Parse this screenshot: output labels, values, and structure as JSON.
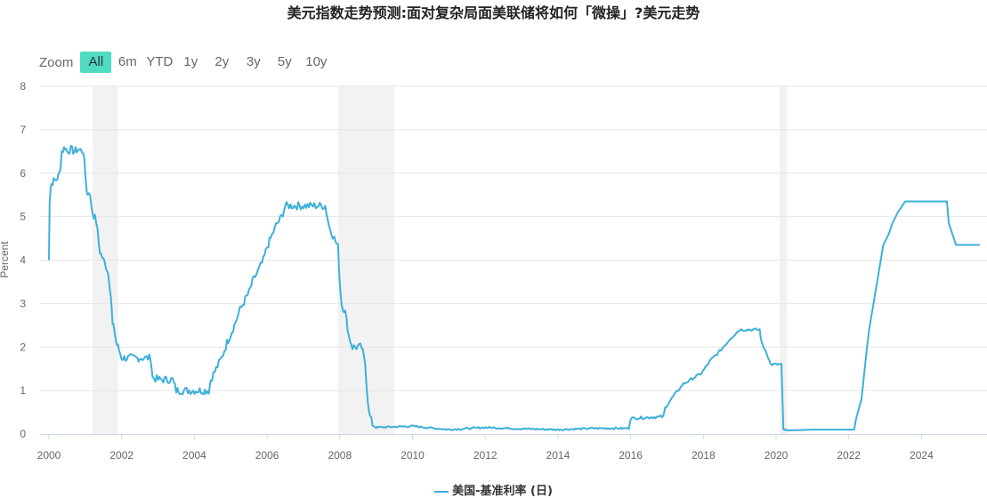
{
  "title": "美元指数走势预测:面对复杂局面美联储将如何「微操」?美元走势",
  "zoom": {
    "label": "Zoom",
    "buttons": [
      "All",
      "6m",
      "YTD",
      "1y",
      "2y",
      "3y",
      "5y",
      "10y"
    ],
    "active": "All"
  },
  "legend": {
    "label": "美国-基准利率 (日)"
  },
  "colors": {
    "line": "#3db0da",
    "recession": "#f2f2f2",
    "grid": "#e6e6e6",
    "active_button": "#4fdcc1"
  },
  "chart_data": {
    "type": "line",
    "ylabel": "Percent",
    "ylim": [
      0,
      8
    ],
    "xlim": [
      1999.85,
      2025.7
    ],
    "yticks": [
      "0",
      "1",
      "2",
      "3",
      "4",
      "5",
      "6",
      "7",
      "8"
    ],
    "xticks": [
      "2000",
      "2002",
      "2004",
      "2006",
      "2008",
      "2010",
      "2012",
      "2014",
      "2016",
      "2018",
      "2020",
      "2022",
      "2024"
    ],
    "recession_bands": [
      [
        2001.2,
        2001.9
      ],
      [
        2007.95,
        2009.5
      ],
      [
        2020.1,
        2020.3
      ]
    ],
    "series": [
      {
        "name": "美国-基准利率 (日)",
        "points": [
          [
            2000.0,
            4.0
          ],
          [
            2000.02,
            5.4
          ],
          [
            2000.05,
            5.7
          ],
          [
            2000.1,
            5.8
          ],
          [
            2000.2,
            5.85
          ],
          [
            2000.3,
            6.0
          ],
          [
            2000.35,
            6.5
          ],
          [
            2000.45,
            6.6
          ],
          [
            2000.5,
            6.5
          ],
          [
            2000.6,
            6.55
          ],
          [
            2000.7,
            6.5
          ],
          [
            2000.8,
            6.55
          ],
          [
            2000.95,
            6.5
          ],
          [
            2001.0,
            6.0
          ],
          [
            2001.05,
            5.5
          ],
          [
            2001.1,
            5.6
          ],
          [
            2001.2,
            5.1
          ],
          [
            2001.3,
            4.9
          ],
          [
            2001.4,
            4.2
          ],
          [
            2001.5,
            4.0
          ],
          [
            2001.6,
            3.8
          ],
          [
            2001.65,
            3.6
          ],
          [
            2001.7,
            3.2
          ],
          [
            2001.75,
            2.5
          ],
          [
            2001.8,
            2.4
          ],
          [
            2001.85,
            2.1
          ],
          [
            2001.9,
            2.0
          ],
          [
            2002.0,
            1.75
          ],
          [
            2002.5,
            1.75
          ],
          [
            2002.8,
            1.75
          ],
          [
            2002.85,
            1.3
          ],
          [
            2003.0,
            1.25
          ],
          [
            2003.4,
            1.25
          ],
          [
            2003.5,
            1.0
          ],
          [
            2004.4,
            1.0
          ],
          [
            2004.45,
            1.25
          ],
          [
            2004.6,
            1.5
          ],
          [
            2004.75,
            1.75
          ],
          [
            2004.9,
            2.1
          ],
          [
            2005.0,
            2.3
          ],
          [
            2005.1,
            2.5
          ],
          [
            2005.25,
            2.85
          ],
          [
            2005.4,
            3.1
          ],
          [
            2005.5,
            3.25
          ],
          [
            2005.6,
            3.5
          ],
          [
            2005.75,
            3.75
          ],
          [
            2005.9,
            4.0
          ],
          [
            2006.0,
            4.3
          ],
          [
            2006.1,
            4.5
          ],
          [
            2006.25,
            4.8
          ],
          [
            2006.4,
            5.0
          ],
          [
            2006.5,
            5.25
          ],
          [
            2007.0,
            5.25
          ],
          [
            2007.6,
            5.25
          ],
          [
            2007.7,
            4.8
          ],
          [
            2007.85,
            4.5
          ],
          [
            2007.95,
            4.3
          ],
          [
            2008.0,
            3.5
          ],
          [
            2008.05,
            3.0
          ],
          [
            2008.15,
            2.8
          ],
          [
            2008.25,
            2.25
          ],
          [
            2008.35,
            2.0
          ],
          [
            2008.6,
            2.0
          ],
          [
            2008.7,
            1.6
          ],
          [
            2008.75,
            1.0
          ],
          [
            2008.8,
            0.5
          ],
          [
            2008.9,
            0.2
          ],
          [
            2009.0,
            0.15
          ],
          [
            2010.0,
            0.18
          ],
          [
            2011.0,
            0.1
          ],
          [
            2012.0,
            0.15
          ],
          [
            2013.0,
            0.12
          ],
          [
            2014.0,
            0.1
          ],
          [
            2015.0,
            0.13
          ],
          [
            2015.95,
            0.13
          ],
          [
            2016.0,
            0.36
          ],
          [
            2016.9,
            0.4
          ],
          [
            2016.95,
            0.6
          ],
          [
            2017.2,
            0.9
          ],
          [
            2017.45,
            1.15
          ],
          [
            2017.95,
            1.4
          ],
          [
            2018.2,
            1.7
          ],
          [
            2018.45,
            1.9
          ],
          [
            2018.75,
            2.2
          ],
          [
            2019.0,
            2.4
          ],
          [
            2019.55,
            2.4
          ],
          [
            2019.6,
            2.1
          ],
          [
            2019.75,
            1.85
          ],
          [
            2019.85,
            1.6
          ],
          [
            2020.15,
            1.6
          ],
          [
            2020.2,
            0.1
          ],
          [
            2020.3,
            0.08
          ],
          [
            2021.0,
            0.1
          ],
          [
            2022.15,
            0.1
          ],
          [
            2022.2,
            0.35
          ],
          [
            2022.35,
            0.8
          ],
          [
            2022.45,
            1.6
          ],
          [
            2022.55,
            2.35
          ],
          [
            2022.7,
            3.1
          ],
          [
            2022.85,
            3.85
          ],
          [
            2022.95,
            4.35
          ],
          [
            2023.1,
            4.6
          ],
          [
            2023.2,
            4.85
          ],
          [
            2023.35,
            5.1
          ],
          [
            2023.55,
            5.35
          ],
          [
            2024.7,
            5.35
          ],
          [
            2024.75,
            4.85
          ],
          [
            2024.85,
            4.6
          ],
          [
            2024.95,
            4.35
          ],
          [
            2025.6,
            4.35
          ]
        ]
      }
    ]
  }
}
